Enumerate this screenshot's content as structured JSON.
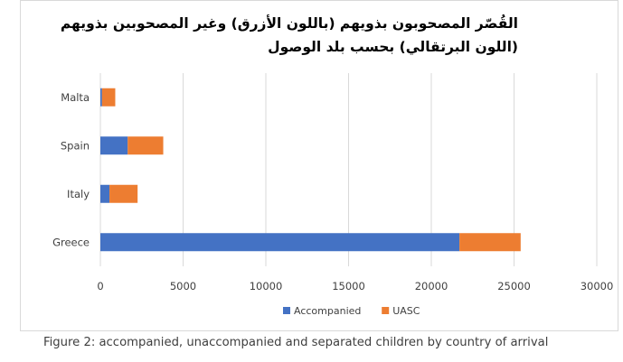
{
  "chart_data": {
    "type": "bar",
    "orientation": "horizontal",
    "stacked": true,
    "title": "القُصّر المصحوبون بذويهم (باللون الأزرق) وغير المصحوبين بذويهم (اللون البرتقالي) بحسب بلد الوصول",
    "title_lines": [
      "القُصّر المصحوبون بذويهم (باللون الأزرق) وغير المصحوبين بذويهم",
      "(اللون البرتقالي) بحسب بلد الوصول"
    ],
    "categories": [
      "Malta",
      "Spain",
      "Italy",
      "Greece"
    ],
    "series": [
      {
        "name": "Accompanied",
        "color": "#4472c4",
        "values": [
          100,
          1650,
          550,
          21700
        ]
      },
      {
        "name": "UASC",
        "color": "#ed7d31",
        "values": [
          800,
          2150,
          1700,
          3700
        ]
      }
    ],
    "xlim": [
      0,
      30000
    ],
    "xticks": [
      "0",
      "5000",
      "10000",
      "15000",
      "20000",
      "25000",
      "30000"
    ],
    "xtick_values": [
      0,
      5000,
      10000,
      15000,
      20000,
      25000,
      30000
    ],
    "grid": true,
    "legend": "bottom-center"
  },
  "caption": "Figure 2: accompanied, unaccompanied and separated children by country of arrival"
}
